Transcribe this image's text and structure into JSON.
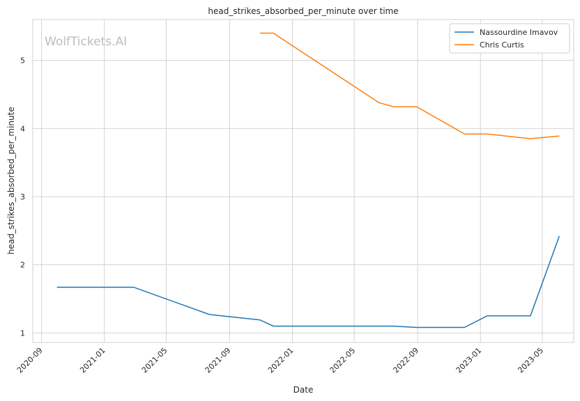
{
  "chart_data": {
    "type": "line",
    "title": "head_strikes_absorbed_per_minute over time",
    "xlabel": "Date",
    "ylabel": "head_strikes_absorbed_per_minute",
    "watermark": "WolfTickets.AI",
    "x_ticks": [
      "2020-09",
      "2021-01",
      "2021-05",
      "2021-09",
      "2022-01",
      "2022-05",
      "2022-09",
      "2023-01",
      "2023-05"
    ],
    "y_ticks": [
      1,
      2,
      3,
      4,
      5
    ],
    "xlim": [
      "2020-08-15",
      "2023-07-01"
    ],
    "ylim": [
      0.86,
      5.6
    ],
    "grid": true,
    "legend_position": "top-right",
    "colors": {
      "Nassourdine Imavov": "#1f77b4",
      "Chris Curtis": "#ff7f0e"
    },
    "series": [
      {
        "name": "Nassourdine Imavov",
        "color": "#1f77b4",
        "points": [
          [
            "2020-10-01",
            1.67
          ],
          [
            "2021-02-27",
            1.67
          ],
          [
            "2021-07-24",
            1.27
          ],
          [
            "2021-10-30",
            1.19
          ],
          [
            "2021-11-25",
            1.1
          ],
          [
            "2022-07-16",
            1.1
          ],
          [
            "2022-08-30",
            1.08
          ],
          [
            "2022-12-01",
            1.08
          ],
          [
            "2023-01-14",
            1.25
          ],
          [
            "2023-04-08",
            1.25
          ],
          [
            "2023-06-03",
            2.42
          ]
        ]
      },
      {
        "name": "Chris Curtis",
        "color": "#ff7f0e",
        "points": [
          [
            "2021-10-30",
            5.4
          ],
          [
            "2021-11-25",
            5.4
          ],
          [
            "2022-06-18",
            4.38
          ],
          [
            "2022-07-16",
            4.32
          ],
          [
            "2022-08-30",
            4.32
          ],
          [
            "2022-12-01",
            3.92
          ],
          [
            "2023-01-14",
            3.92
          ],
          [
            "2023-04-08",
            3.85
          ],
          [
            "2023-06-03",
            3.89
          ]
        ]
      }
    ]
  }
}
